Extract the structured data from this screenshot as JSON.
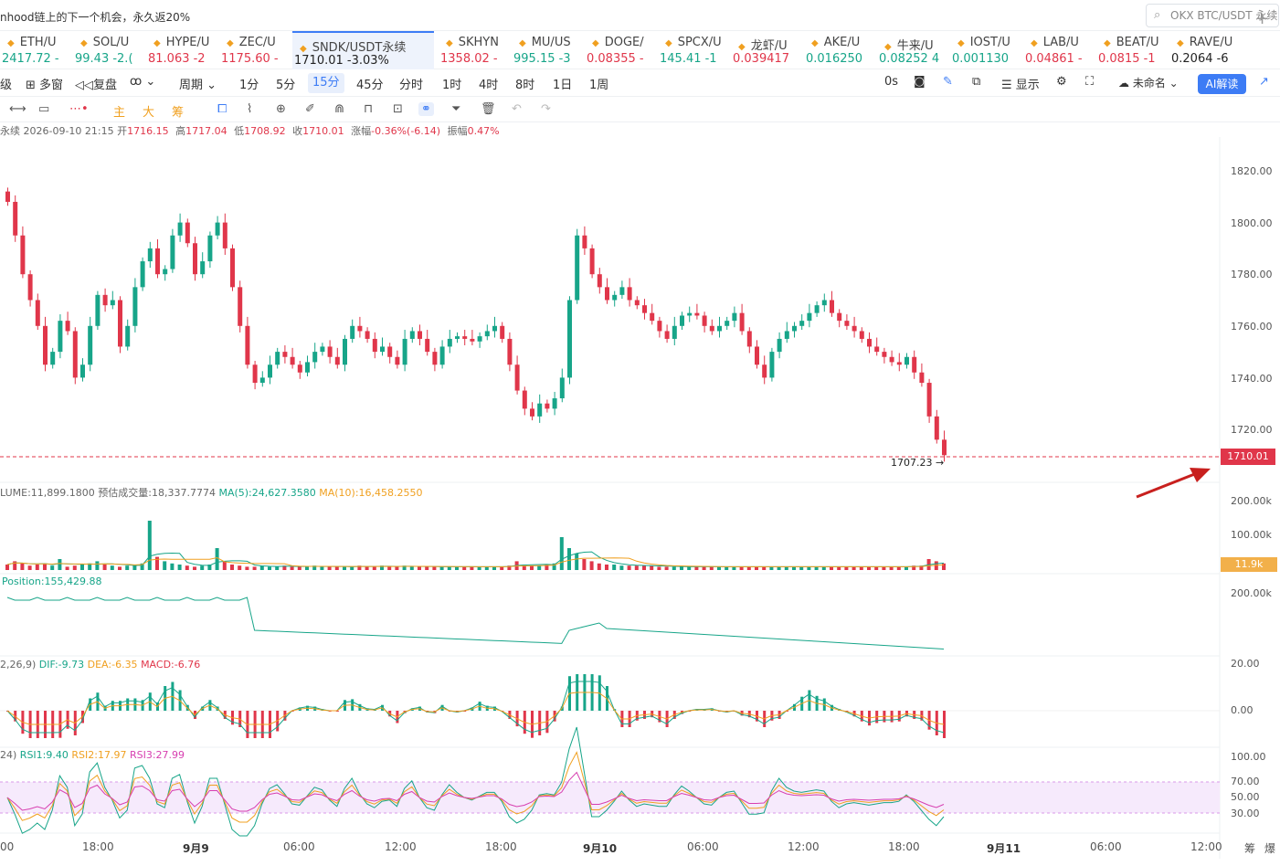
{
  "promo": "nhood链上的下一个机会，永久返20%",
  "search": {
    "placeholder": "OKX BTC/USDT 永续"
  },
  "tickers": [
    {
      "sym": "ETH/U",
      "price": "2417.72 -",
      "dir": "up"
    },
    {
      "sym": "SOL/U",
      "price": "99.43 -2.(",
      "dir": "up"
    },
    {
      "sym": "HYPE/U",
      "price": "81.063 -2",
      "dir": "down"
    },
    {
      "sym": "ZEC/U",
      "price": "1175.60 -",
      "dir": "down"
    },
    {
      "sym": "SNDK/USDT永续",
      "price": "1710.01  -3.03%",
      "dir": "dark",
      "active": true
    },
    {
      "sym": "SKHYN",
      "price": "1358.02 -",
      "dir": "down"
    },
    {
      "sym": "MU/US",
      "price": "995.15 -3",
      "dir": "up"
    },
    {
      "sym": "DOGE/",
      "price": "0.08355 -",
      "dir": "down"
    },
    {
      "sym": "SPCX/U",
      "price": "145.41 -1",
      "dir": "up"
    },
    {
      "sym": "龙虾/U",
      "price": "0.039417",
      "dir": "down"
    },
    {
      "sym": "AKE/U",
      "price": "0.016250",
      "dir": "up"
    },
    {
      "sym": "牛来/U",
      "price": "0.08252 4",
      "dir": "up"
    },
    {
      "sym": "IOST/U",
      "price": "0.001130",
      "dir": "up"
    },
    {
      "sym": "LAB/U",
      "price": "0.04861 -",
      "dir": "down"
    },
    {
      "sym": "BEAT/U",
      "price": "0.0815 -1",
      "dir": "down"
    },
    {
      "sym": "RAVE/U",
      "price": "0.2064 -6",
      "dir": "dark"
    }
  ],
  "toolbar": {
    "items": [
      "级",
      "多窗",
      "复盘",
      "周期",
      "1分",
      "5分",
      "15分",
      "45分",
      "分时",
      "1时",
      "4时",
      "8时",
      "1日",
      "1周"
    ],
    "selected": "15分",
    "right": [
      "0s",
      "显示",
      "未命名"
    ],
    "ai": "AI解读"
  },
  "tools": {
    "main": "主",
    "big": "大",
    "chip": "筹"
  },
  "ohlc": {
    "prefix": "永续",
    "time": "2026-09-10 21:15",
    "open_label": "开",
    "open": "1716.15",
    "high_label": "高",
    "high": "1717.04",
    "low_label": "低",
    "low": "1708.92",
    "close_label": "收",
    "close": "1710.01",
    "chg_label": "涨幅",
    "chg": "-0.36%(-6.14)",
    "amp_label": "振幅",
    "amp": "0.47%"
  },
  "volume": {
    "label": "LUME:11,899.1800",
    "est": "预估成交量:18,337.7774",
    "ma5": "MA(5):24,627.3580",
    "ma10": "MA(10):16,458.2550",
    "tag": "11.9k",
    "axis": [
      "200.00k",
      "100.00k"
    ]
  },
  "position": {
    "label": "Position:155,429.88",
    "axis": "200.00k"
  },
  "macd": {
    "params": "2,26,9)",
    "dif": "DIF:-9.73",
    "dea": "DEA:-6.35",
    "macd": "MACD:-6.76",
    "axis": [
      "20.00",
      "0.00"
    ]
  },
  "rsi": {
    "params": "24)",
    "rsi1": "RSI1:9.40",
    "rsi2": "RSI2:17.97",
    "rsi3": "RSI3:27.99",
    "axis": [
      "100.00",
      "70.00",
      "50.00",
      "30.00"
    ]
  },
  "price_axis": [
    "1820.00",
    "1800.00",
    "1780.00",
    "1760.00",
    "1740.00",
    "1720.00",
    "200.00k"
  ],
  "last_price": "1710.01",
  "low_marker": "1707.23",
  "x_axis": [
    "00",
    "18:00",
    "9月9",
    "06:00",
    "12:00",
    "18:00",
    "9月10",
    "06:00",
    "12:00",
    "18:00",
    "9月11",
    "06:00",
    "12:00"
  ],
  "bottom_right": [
    "筹",
    "爆"
  ],
  "colors": {
    "up": "#17a589",
    "down": "#e0364a",
    "accent": "#3d7cf5"
  },
  "chart_data": {
    "type": "candlestick",
    "interval": "15分",
    "ylim": [
      1700,
      1825
    ],
    "close_series": [
      1808,
      1795,
      1780,
      1770,
      1760,
      1745,
      1750,
      1762,
      1758,
      1740,
      1745,
      1760,
      1772,
      1768,
      1770,
      1752,
      1760,
      1775,
      1785,
      1790,
      1780,
      1782,
      1795,
      1800,
      1792,
      1780,
      1785,
      1795,
      1800,
      1790,
      1775,
      1760,
      1745,
      1738,
      1740,
      1745,
      1750,
      1748,
      1745,
      1742,
      1746,
      1750,
      1752,
      1748,
      1745,
      1755,
      1760,
      1758,
      1755,
      1750,
      1752,
      1748,
      1745,
      1755,
      1758,
      1755,
      1750,
      1745,
      1752,
      1755,
      1756,
      1755,
      1754,
      1756,
      1758,
      1760,
      1755,
      1745,
      1735,
      1728,
      1725,
      1730,
      1728,
      1732,
      1740,
      1770,
      1795,
      1790,
      1780,
      1775,
      1770,
      1772,
      1775,
      1770,
      1768,
      1765,
      1762,
      1758,
      1755,
      1760,
      1764,
      1765,
      1764,
      1760,
      1758,
      1760,
      1762,
      1765,
      1758,
      1752,
      1745,
      1740,
      1750,
      1755,
      1758,
      1760,
      1762,
      1765,
      1768,
      1770,
      1765,
      1762,
      1760,
      1758,
      1755,
      1752,
      1750,
      1748,
      1746,
      1745,
      1748,
      1742,
      1738,
      1725,
      1716,
      1710
    ],
    "volume_series": [
      5,
      8,
      6,
      4,
      5,
      6,
      4,
      10,
      3,
      4,
      5,
      6,
      8,
      5,
      4,
      3,
      4,
      5,
      6,
      45,
      12,
      8,
      6,
      5,
      4,
      3,
      4,
      5,
      20,
      8,
      5,
      4,
      3,
      3,
      4,
      3,
      3,
      4,
      3,
      3,
      3,
      4,
      3,
      3,
      3,
      3,
      3,
      4,
      3,
      3,
      4,
      3,
      3,
      4,
      3,
      3,
      3,
      3,
      3,
      3,
      3,
      3,
      3,
      3,
      3,
      3,
      3,
      4,
      8,
      5,
      4,
      4,
      5,
      6,
      30,
      20,
      15,
      10,
      8,
      6,
      5,
      5,
      4,
      4,
      4,
      4,
      4,
      3,
      3,
      3,
      3,
      3,
      3,
      3,
      3,
      3,
      3,
      3,
      3,
      3,
      3,
      3,
      3,
      3,
      3,
      3,
      3,
      3,
      3,
      3,
      3,
      3,
      3,
      3,
      3,
      3,
      3,
      3,
      3,
      3,
      3,
      4,
      4,
      10,
      8,
      6
    ],
    "rsi_band": [
      30,
      70
    ]
  }
}
